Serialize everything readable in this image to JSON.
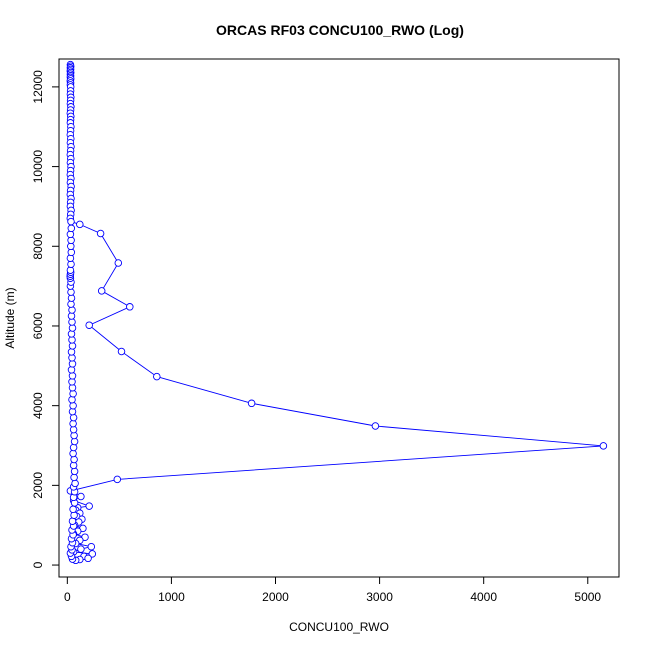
{
  "chart_data": {
    "type": "line",
    "title": "ORCAS RF03 CONCU100_RWO (Log)",
    "xlabel": "CONCU100_RWO",
    "ylabel": "Altitude (m)",
    "xlim": [
      -80,
      5300
    ],
    "ylim": [
      -300,
      12700
    ],
    "x_ticks": [
      0,
      1000,
      2000,
      3000,
      4000,
      5000
    ],
    "y_ticks": [
      0,
      2000,
      4000,
      6000,
      8000,
      10000,
      12000
    ],
    "grid": false,
    "legend": "none",
    "series": [
      {
        "color": "#0000ff",
        "marker": "open-circle",
        "points": [
          [
            30,
            12560
          ],
          [
            32,
            12520
          ],
          [
            30,
            12480
          ],
          [
            31,
            12440
          ],
          [
            29,
            12400
          ],
          [
            32,
            12360
          ],
          [
            30,
            12320
          ],
          [
            31,
            12280
          ],
          [
            30,
            12240
          ],
          [
            32,
            12200
          ],
          [
            29,
            12150
          ],
          [
            31,
            12100
          ],
          [
            30,
            12050
          ],
          [
            32,
            12000
          ],
          [
            31,
            11900
          ],
          [
            30,
            11820
          ],
          [
            33,
            11740
          ],
          [
            31,
            11660
          ],
          [
            30,
            11580
          ],
          [
            34,
            11500
          ],
          [
            31,
            11420
          ],
          [
            29,
            11340
          ],
          [
            33,
            11260
          ],
          [
            31,
            11180
          ],
          [
            30,
            11100
          ],
          [
            34,
            11000
          ],
          [
            31,
            10900
          ],
          [
            29,
            10800
          ],
          [
            33,
            10700
          ],
          [
            30,
            10600
          ],
          [
            35,
            10500
          ],
          [
            31,
            10400
          ],
          [
            29,
            10300
          ],
          [
            33,
            10200
          ],
          [
            30,
            10100
          ],
          [
            35,
            10000
          ],
          [
            31,
            9900
          ],
          [
            29,
            9800
          ],
          [
            34,
            9700
          ],
          [
            30,
            9600
          ],
          [
            36,
            9500
          ],
          [
            31,
            9400
          ],
          [
            29,
            9300
          ],
          [
            35,
            9200
          ],
          [
            31,
            9100
          ],
          [
            30,
            9000
          ],
          [
            36,
            8900
          ],
          [
            32,
            8800
          ],
          [
            29,
            8700
          ],
          [
            35,
            8620
          ],
          [
            120,
            8550
          ],
          [
            320,
            8320
          ],
          [
            490,
            7580
          ],
          [
            330,
            6880
          ],
          [
            600,
            6480
          ],
          [
            210,
            6020
          ],
          [
            520,
            5360
          ],
          [
            860,
            4730
          ],
          [
            1770,
            4060
          ],
          [
            2960,
            3490
          ],
          [
            5150,
            2990
          ],
          [
            480,
            2150
          ],
          [
            30,
            1860
          ],
          [
            130,
            1720
          ],
          [
            60,
            1620
          ],
          [
            210,
            1480
          ],
          [
            100,
            1440
          ],
          [
            80,
            1380
          ],
          [
            120,
            1300
          ],
          [
            90,
            1220
          ],
          [
            140,
            1150
          ],
          [
            110,
            1080
          ],
          [
            70,
            1000
          ],
          [
            150,
            920
          ],
          [
            100,
            850
          ],
          [
            60,
            780
          ],
          [
            170,
            700
          ],
          [
            120,
            620
          ],
          [
            80,
            540
          ],
          [
            230,
            460
          ],
          [
            130,
            400
          ],
          [
            60,
            330
          ],
          [
            240,
            280
          ],
          [
            160,
            220
          ],
          [
            200,
            170
          ],
          [
            120,
            140
          ],
          [
            80,
            120
          ],
          [
            50,
            150
          ],
          [
            40,
            220
          ],
          [
            30,
            300
          ],
          [
            45,
            380
          ],
          [
            35,
            460
          ],
          [
            50,
            560
          ],
          [
            40,
            660
          ],
          [
            55,
            760
          ],
          [
            45,
            880
          ],
          [
            60,
            980
          ],
          [
            50,
            1100
          ],
          [
            65,
            1250
          ],
          [
            55,
            1400
          ],
          [
            70,
            1560
          ],
          [
            60,
            1700
          ],
          [
            70,
            1840
          ],
          [
            60,
            1960
          ],
          [
            75,
            2050
          ],
          [
            65,
            2200
          ],
          [
            70,
            2350
          ],
          [
            60,
            2500
          ],
          [
            65,
            2650
          ],
          [
            55,
            2800
          ],
          [
            60,
            2950
          ],
          [
            70,
            3100
          ],
          [
            65,
            3250
          ],
          [
            60,
            3400
          ],
          [
            55,
            3550
          ],
          [
            60,
            3700
          ],
          [
            50,
            3850
          ],
          [
            55,
            4000
          ],
          [
            45,
            4150
          ],
          [
            55,
            4300
          ],
          [
            50,
            4450
          ],
          [
            45,
            4600
          ],
          [
            50,
            4750
          ],
          [
            40,
            4900
          ],
          [
            50,
            5050
          ],
          [
            45,
            5200
          ],
          [
            40,
            5350
          ],
          [
            50,
            5500
          ],
          [
            45,
            5650
          ],
          [
            40,
            5800
          ],
          [
            50,
            5950
          ],
          [
            45,
            6100
          ],
          [
            40,
            6250
          ],
          [
            45,
            6400
          ],
          [
            35,
            6550
          ],
          [
            40,
            6700
          ],
          [
            35,
            6850
          ],
          [
            30,
            7000
          ],
          [
            35,
            7100
          ],
          [
            30,
            7200
          ],
          [
            28,
            7250
          ],
          [
            30,
            7300
          ],
          [
            32,
            7350
          ],
          [
            30,
            7400
          ],
          [
            35,
            7550
          ],
          [
            30,
            7700
          ],
          [
            38,
            7850
          ],
          [
            33,
            8000
          ],
          [
            36,
            8150
          ],
          [
            30,
            8300
          ],
          [
            38,
            8450
          ]
        ]
      }
    ]
  }
}
